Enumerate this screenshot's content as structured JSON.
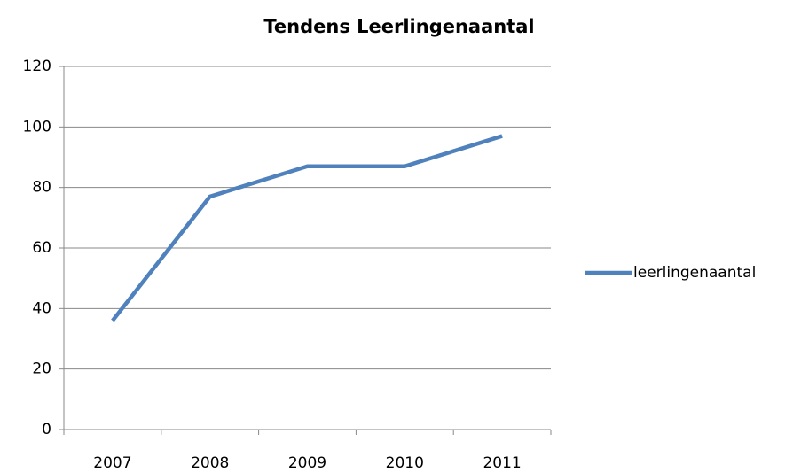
{
  "chart_data": {
    "type": "line",
    "title": "Tendens Leerlingenaantal",
    "categories": [
      "2007",
      "2008",
      "2009",
      "2010",
      "2011"
    ],
    "series": [
      {
        "name": "leerlingenaantal",
        "color": "#4f81bd",
        "values": [
          36,
          77,
          87,
          87,
          97
        ]
      }
    ],
    "ylim": [
      0,
      120
    ],
    "yticks": [
      0,
      20,
      40,
      60,
      80,
      100,
      120
    ],
    "grid": true,
    "legend": "right"
  }
}
